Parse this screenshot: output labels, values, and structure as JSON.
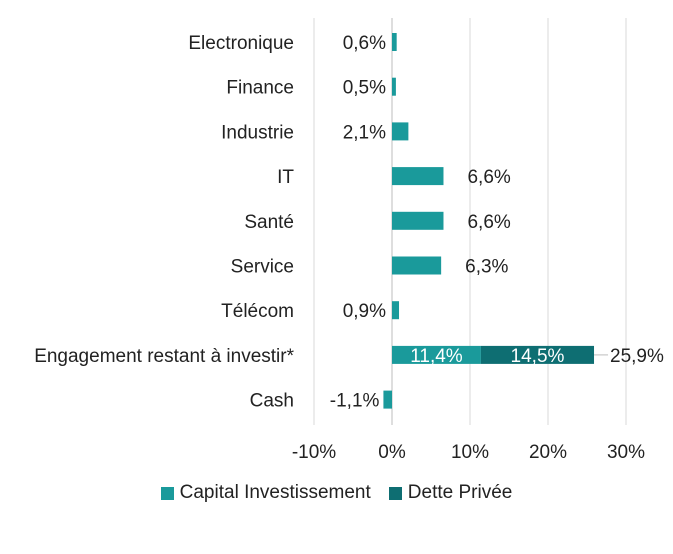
{
  "chart_data": {
    "type": "bar",
    "orientation": "horizontal",
    "stacked": true,
    "categories": [
      "Electronique",
      "Finance",
      "Industrie",
      "IT",
      "Santé",
      "Service",
      "Télécom",
      "Engagement restant à investir*",
      "Cash"
    ],
    "series": [
      {
        "name": "Capital Investissement",
        "color": "#1A9A9B",
        "values": [
          0.6,
          0.5,
          2.1,
          6.6,
          6.6,
          6.3,
          0.9,
          11.4,
          -1.1
        ],
        "labels": [
          "0,6%",
          "0,5%",
          "2,1%",
          "6,6%",
          "6,6%",
          "6,3%",
          "0,9%",
          "11,4%",
          "-1,1%"
        ]
      },
      {
        "name": "Dette Privée",
        "color": "#0E6E72",
        "values": [
          0,
          0,
          0,
          0,
          0,
          0,
          0,
          14.5,
          0
        ],
        "labels": [
          "",
          "",
          "",
          "",
          "",
          "",
          "",
          "14,5%",
          ""
        ]
      }
    ],
    "totals": [
      {
        "category": "Engagement restant à investir*",
        "value": 25.9,
        "label": "25,9%"
      }
    ],
    "xlim": [
      -10,
      30
    ],
    "xticks": [
      -10,
      0,
      10,
      20,
      30
    ],
    "xtick_labels": [
      "-10%",
      "0%",
      "10%",
      "20%",
      "30%"
    ],
    "grid": true,
    "legend_position": "bottom"
  }
}
